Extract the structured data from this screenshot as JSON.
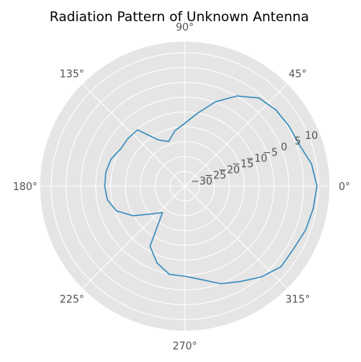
{
  "chart_data": {
    "type": "line",
    "projection": "polar",
    "title": "Radiation Pattern of Unknown Antenna",
    "angle_unit": "degrees",
    "angle_ticks": [
      0,
      45,
      90,
      135,
      180,
      225,
      270,
      315
    ],
    "angle_tick_labels": [
      "0°",
      "45°",
      "90°",
      "135°",
      "180°",
      "225°",
      "270°",
      "315°"
    ],
    "r_ticks": [
      -30,
      -25,
      -20,
      -15,
      -10,
      -5,
      0,
      5,
      10
    ],
    "r_tick_labels": [
      "−30",
      "−25",
      "−20",
      "−15",
      "−10",
      "−5",
      "0",
      "5",
      "10"
    ],
    "rlim": [
      -35,
      14
    ],
    "r_label_angle_deg": 22.5,
    "grid": true,
    "colors": {
      "background": "#e5e5e5",
      "grid": "#ffffff",
      "series": "#348abd"
    },
    "series": [
      {
        "theta_deg": [
          0,
          10,
          20,
          30,
          40,
          50,
          60,
          70,
          80,
          90,
          100,
          110,
          120,
          130,
          140,
          150,
          160,
          170,
          180,
          190,
          200,
          210,
          220,
          230,
          240,
          250,
          260,
          270,
          280,
          290,
          300,
          310,
          320,
          330,
          340,
          350,
          360
        ],
        "r": [
          9.5,
          8.3,
          6.0,
          5.5,
          5.0,
          3.8,
          0.1,
          -4.7,
          -10.0,
          -13.8,
          -16.0,
          -19.0,
          -17.0,
          -10.2,
          -10.0,
          -10.0,
          -8.5,
          -8.0,
          -8.0,
          -8.5,
          -10.5,
          -15.0,
          -20.4,
          -23.3,
          -11.6,
          -7.5,
          -4.8,
          -4.6,
          -3.0,
          0.0,
          2.2,
          5.0,
          7.3,
          7.3,
          8.3,
          8.9,
          9.5
        ]
      }
    ]
  }
}
